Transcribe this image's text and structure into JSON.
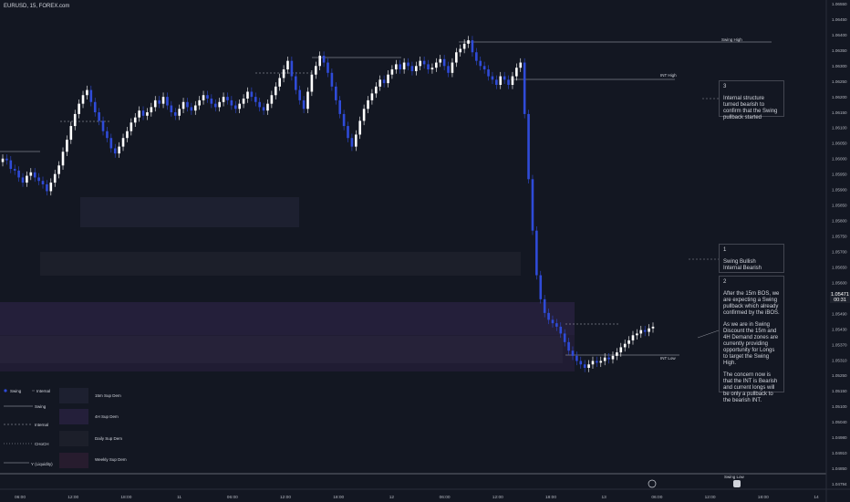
{
  "header": {
    "title": "EURUSD, 15, FOREX.com"
  },
  "colors": {
    "background": "#131722",
    "candle_up": "#ffffff",
    "candle_down": "#2f4bd8",
    "axis_text": "#b2b5be",
    "zone_15m": "#1d2030",
    "zone_4h": "#241f3a",
    "zone_daily": "#1c1f2a",
    "zone_weekly": "#271c2e"
  },
  "chart_data": {
    "type": "candlestick",
    "y_ticks": [
      "1.06550",
      "1.06450",
      "1.06400",
      "1.06350",
      "1.06300",
      "1.06250",
      "1.06200",
      "1.06150",
      "1.06100",
      "1.06050",
      "1.06000",
      "1.05950",
      "1.05900",
      "1.05850",
      "1.05800",
      "1.05750",
      "1.05700",
      "1.05650",
      "1.05600",
      "1.05550",
      "1.05490",
      "1.05430",
      "1.05370",
      "1.05310",
      "1.05250",
      "1.05150",
      "1.05100",
      "1.05040",
      "1.04980",
      "1.04910",
      "1.04850",
      "1.04794"
    ],
    "x_ticks": [
      "06:00",
      "12:00",
      "18:00",
      "11",
      "06:00",
      "12:00",
      "18:00",
      "12",
      "06:00",
      "12:00",
      "18:00",
      "13",
      "06:00",
      "12:00",
      "18:00",
      "14"
    ],
    "close": [
      1.0572,
      1.0571,
      1.0566,
      1.0565,
      1.0561,
      1.0558,
      1.0562,
      1.0564,
      1.0561,
      1.0559,
      1.0557,
      1.0553,
      1.0558,
      1.0563,
      1.0568,
      1.0576,
      1.0583,
      1.0591,
      1.0598,
      1.0604,
      1.0609,
      1.0612,
      1.0605,
      1.0599,
      1.0594,
      1.0588,
      1.0584,
      1.0578,
      1.0575,
      1.0579,
      1.0584,
      1.0588,
      1.0593,
      1.0596,
      1.06,
      1.0597,
      1.0599,
      1.0602,
      1.0606,
      1.0604,
      1.0608,
      1.0603,
      1.0599,
      1.0597,
      1.0601,
      1.0605,
      1.0602,
      1.06,
      1.0603,
      1.0606,
      1.0609,
      1.0607,
      1.0604,
      1.0602,
      1.0605,
      1.0608,
      1.0606,
      1.0603,
      1.0601,
      1.0604,
      1.0607,
      1.0611,
      1.0608,
      1.0605,
      1.0602,
      1.06,
      1.0604,
      1.0609,
      1.0614,
      1.0619,
      1.0624,
      1.0629,
      1.062,
      1.0612,
      1.0606,
      1.0601,
      1.0611,
      1.0621,
      1.0626,
      1.0632,
      1.0628,
      1.0622,
      1.0614,
      1.0606,
      1.0598,
      1.0591,
      1.0584,
      1.0579,
      1.0586,
      1.0594,
      1.0601,
      1.0606,
      1.061,
      1.0614,
      1.0618,
      1.0616,
      1.0621,
      1.0624,
      1.0627,
      1.0624,
      1.0628,
      1.0626,
      1.0623,
      1.0626,
      1.0629,
      1.0627,
      1.0624,
      1.0625,
      1.0628,
      1.063,
      1.0626,
      1.0622,
      1.0628,
      1.0634,
      1.0636,
      1.0639,
      1.0641,
      1.0634,
      1.0629,
      1.0626,
      1.0624,
      1.062,
      1.0618,
      1.0615,
      1.062,
      1.0618,
      1.0615,
      1.062,
      1.0625,
      1.0628,
      1.0598,
      1.056,
      1.053,
      1.0504,
      1.049,
      1.0482,
      1.0478,
      1.0476,
      1.0474,
      1.047,
      1.0465,
      1.046,
      1.0457,
      1.0454,
      1.0452,
      1.045,
      1.0452,
      1.0454,
      1.0453,
      1.0454,
      1.0456,
      1.0455,
      1.0457,
      1.0459,
      1.0462,
      1.0464,
      1.0466,
      1.0469,
      1.047,
      1.0472,
      1.0471,
      1.0473,
      1.0474
    ]
  },
  "zones": [
    {
      "label": "15m Sup Dem"
    },
    {
      "label": "4H Sup Dem"
    },
    {
      "label": "Daily Sup Dem"
    },
    {
      "label": "Weekly Sup Dem"
    }
  ],
  "structure": {
    "swing_high": "Swing High",
    "int_high": "INT High",
    "int_low": "INT Low",
    "swing_low": "Swing Low"
  },
  "legend": {
    "swing": "Swing",
    "internal": "Internal",
    "swing_line": "Swing",
    "internal_line": "Internal",
    "choch": "CHoCH",
    "liquidity": "Y (Liquidity)"
  },
  "notes": {
    "n1": {
      "title": "1",
      "lines": [
        "Swing Bullish",
        "Internal Bearish"
      ]
    },
    "n2": {
      "title": "2",
      "paras": [
        "After the 15m BOS, we are expecting a Swing pullback which already confirmed by the iBOS.",
        "As we are in Swing Discount the 15m and 4H Demand zones are currently providing opportunity for Longs to target the Swing High.",
        "The concern now is that the INT is Bearish and current longs will be only a pullback to the bearish INT."
      ]
    },
    "n3": {
      "title": "3",
      "lines": [
        "Internal structure turned bearish to confirm that the Swing pullback started"
      ]
    }
  },
  "price_tag": {
    "value": "1.05471",
    "sub": "00:31"
  }
}
